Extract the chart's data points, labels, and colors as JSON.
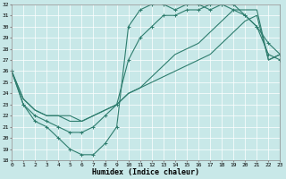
{
  "xlabel": "Humidex (Indice chaleur)",
  "bg_color": "#c8e8e8",
  "line_color": "#2e7d6e",
  "grid_color": "#ffffff",
  "xlim": [
    0,
    23
  ],
  "ylim": [
    18,
    32
  ],
  "xticks": [
    0,
    1,
    2,
    3,
    4,
    5,
    6,
    7,
    8,
    9,
    10,
    11,
    12,
    13,
    14,
    15,
    16,
    17,
    18,
    19,
    20,
    21,
    22,
    23
  ],
  "yticks": [
    18,
    19,
    20,
    21,
    22,
    23,
    24,
    25,
    26,
    27,
    28,
    29,
    30,
    31,
    32
  ],
  "c1x": [
    0,
    1,
    2,
    3,
    4,
    5,
    6,
    7,
    8,
    9,
    10,
    11,
    12,
    13,
    14,
    15,
    16,
    17,
    18,
    19,
    20,
    21,
    22,
    23
  ],
  "c1y": [
    26,
    23,
    21.5,
    21,
    20,
    19,
    18.5,
    18.5,
    19.5,
    21,
    30,
    31.5,
    32,
    32,
    31.5,
    32,
    32,
    31.5,
    32,
    31.5,
    31,
    30,
    27.5,
    27
  ],
  "c2x": [
    0,
    1,
    2,
    3,
    4,
    5,
    6,
    7,
    8,
    9,
    10,
    11,
    12,
    13,
    14,
    15,
    16,
    17,
    18,
    19,
    20,
    21,
    22,
    23
  ],
  "c2y": [
    26,
    23,
    22,
    21.5,
    21,
    20.5,
    20.5,
    21,
    22,
    23,
    27,
    29,
    30,
    31,
    31,
    31.5,
    31.5,
    32,
    32,
    32,
    31,
    30,
    28.5,
    27.5
  ],
  "c3x": [
    0,
    1,
    2,
    3,
    4,
    5,
    6,
    7,
    8,
    9,
    10,
    11,
    12,
    13,
    14,
    15,
    16,
    17,
    18,
    19,
    20,
    21,
    22,
    23
  ],
  "c3y": [
    26,
    23.5,
    22.5,
    22,
    22,
    22,
    21.5,
    22,
    22.5,
    23,
    24,
    24.5,
    25.5,
    26.5,
    27.5,
    28,
    28.5,
    29.5,
    30.5,
    31.5,
    31.5,
    31.5,
    27,
    27.5
  ],
  "c4x": [
    0,
    1,
    2,
    3,
    4,
    5,
    6,
    7,
    8,
    9,
    10,
    11,
    12,
    13,
    14,
    15,
    16,
    17,
    18,
    19,
    20,
    21,
    22,
    23
  ],
  "c4y": [
    26,
    23.5,
    22.5,
    22,
    22,
    21.5,
    21.5,
    22,
    22.5,
    23,
    24,
    24.5,
    25,
    25.5,
    26,
    26.5,
    27,
    27.5,
    28.5,
    29.5,
    30.5,
    31,
    27,
    27.5
  ]
}
